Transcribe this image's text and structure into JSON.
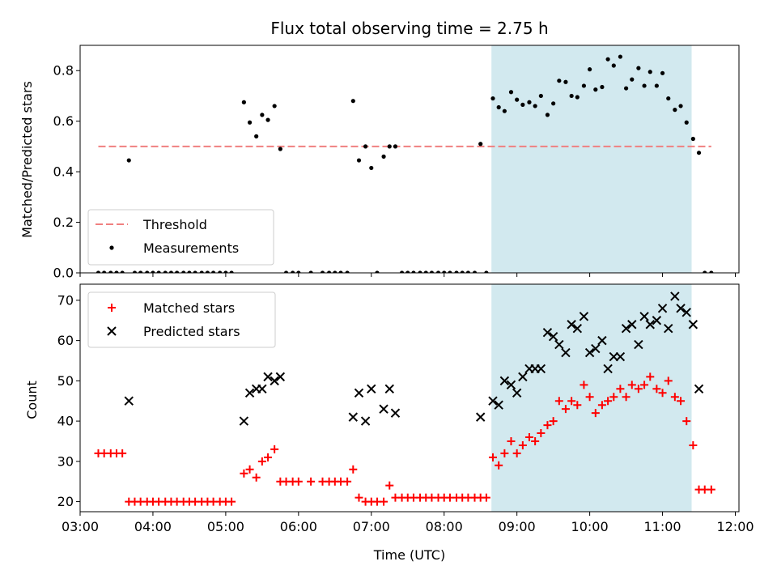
{
  "chart_data": [
    {
      "type": "scatter",
      "title": "Flux total observing time = 2.75 h",
      "xlabel": "",
      "ylabel": "Matched/Predicted stars",
      "xlim": [
        3.0,
        12.05
      ],
      "ylim": [
        0.0,
        0.9
      ],
      "yticks": [
        "0.0",
        "0.2",
        "0.4",
        "0.6",
        "0.8"
      ],
      "ytick_values": [
        0,
        0.2,
        0.4,
        0.6,
        0.8
      ],
      "grid": false,
      "legend_position": "lower-left",
      "shaded_interval": {
        "x": [
          8.65,
          11.4
        ],
        "color": "#d2e9ef"
      },
      "threshold": {
        "name": "Threshold",
        "value": 0.5,
        "x": [
          3.25,
          11.67
        ],
        "color": "#f08080"
      },
      "measurements": {
        "name": "Measurements",
        "color": "#000000",
        "x": [
          3.25,
          3.33,
          3.42,
          3.5,
          3.58,
          3.67,
          3.75,
          3.83,
          3.92,
          4.0,
          4.08,
          4.17,
          4.25,
          4.33,
          4.42,
          4.5,
          4.58,
          4.67,
          4.75,
          4.83,
          4.92,
          5.0,
          5.08,
          5.25,
          5.33,
          5.42,
          5.5,
          5.58,
          5.67,
          5.75,
          5.83,
          5.92,
          6.0,
          6.17,
          6.33,
          6.42,
          6.5,
          6.58,
          6.67,
          6.75,
          6.83,
          6.92,
          7.0,
          7.08,
          7.17,
          7.25,
          7.33,
          7.42,
          7.5,
          7.58,
          7.67,
          7.75,
          7.83,
          7.92,
          8.0,
          8.08,
          8.17,
          8.25,
          8.33,
          8.42,
          8.5,
          8.58,
          8.67,
          8.75,
          8.83,
          8.92,
          9.0,
          9.08,
          9.17,
          9.25,
          9.33,
          9.42,
          9.5,
          9.58,
          9.67,
          9.75,
          9.83,
          9.92,
          10.0,
          10.08,
          10.17,
          10.25,
          10.33,
          10.42,
          10.5,
          10.58,
          10.67,
          10.75,
          10.83,
          10.92,
          11.0,
          11.08,
          11.17,
          11.25,
          11.33,
          11.42,
          11.5,
          11.58,
          11.67
        ],
        "y": [
          0,
          0,
          0,
          0,
          0,
          0.445,
          0,
          0,
          0,
          0,
          0,
          0,
          0,
          0,
          0,
          0,
          0,
          0,
          0,
          0,
          0,
          0,
          0,
          0.675,
          0.595,
          0.54,
          0.625,
          0.605,
          0.66,
          0.49,
          0,
          0,
          0,
          0,
          0,
          0,
          0,
          0,
          0,
          0.68,
          0.445,
          0.5,
          0.415,
          0,
          0.46,
          0.5,
          0.5,
          0,
          0,
          0,
          0,
          0,
          0,
          0,
          0,
          0,
          0,
          0,
          0,
          0,
          0.51,
          0,
          0.69,
          0.655,
          0.64,
          0.715,
          0.685,
          0.665,
          0.675,
          0.66,
          0.7,
          0.625,
          0.67,
          0.76,
          0.755,
          0.7,
          0.695,
          0.74,
          0.805,
          0.725,
          0.735,
          0.845,
          0.82,
          0.855,
          0.73,
          0.765,
          0.81,
          0.74,
          0.795,
          0.74,
          0.79,
          0.69,
          0.645,
          0.66,
          0.595,
          0.53,
          0.475,
          0,
          0
        ]
      }
    },
    {
      "type": "scatter",
      "title": "",
      "xlabel": "Time (UTC)",
      "ylabel": "Count",
      "xlim": [
        3.0,
        12.05
      ],
      "ylim": [
        17.5,
        74
      ],
      "yticks": [
        "20",
        "30",
        "40",
        "50",
        "60",
        "70"
      ],
      "ytick_values": [
        20,
        30,
        40,
        50,
        60,
        70
      ],
      "xticks": [
        "03:00",
        "04:00",
        "05:00",
        "06:00",
        "07:00",
        "08:00",
        "09:00",
        "10:00",
        "11:00",
        "12:00"
      ],
      "xtick_values": [
        3,
        4,
        5,
        6,
        7,
        8,
        9,
        10,
        11,
        12
      ],
      "grid": false,
      "legend_position": "upper-left",
      "shaded_interval": {
        "x": [
          8.65,
          11.4
        ],
        "color": "#d2e9ef"
      },
      "series": [
        {
          "name": "Matched stars",
          "marker": "plus",
          "color": "#ff0000",
          "x": [
            3.25,
            3.33,
            3.42,
            3.5,
            3.58,
            3.67,
            3.75,
            3.83,
            3.92,
            4.0,
            4.08,
            4.17,
            4.25,
            4.33,
            4.42,
            4.5,
            4.58,
            4.67,
            4.75,
            4.83,
            4.92,
            5.0,
            5.08,
            5.25,
            5.33,
            5.42,
            5.5,
            5.58,
            5.67,
            5.75,
            5.83,
            5.92,
            6.0,
            6.17,
            6.33,
            6.42,
            6.5,
            6.58,
            6.67,
            6.75,
            6.83,
            6.92,
            7.0,
            7.08,
            7.17,
            7.25,
            7.33,
            7.42,
            7.5,
            7.58,
            7.67,
            7.75,
            7.83,
            7.92,
            8.0,
            8.08,
            8.17,
            8.25,
            8.33,
            8.42,
            8.5,
            8.58,
            8.67,
            8.75,
            8.83,
            8.92,
            9.0,
            9.08,
            9.17,
            9.25,
            9.33,
            9.42,
            9.5,
            9.58,
            9.67,
            9.75,
            9.83,
            9.92,
            10.0,
            10.08,
            10.17,
            10.25,
            10.33,
            10.42,
            10.5,
            10.58,
            10.67,
            10.75,
            10.83,
            10.92,
            11.0,
            11.08,
            11.17,
            11.25,
            11.33,
            11.42,
            11.5,
            11.58,
            11.67
          ],
          "y": [
            32,
            32,
            32,
            32,
            32,
            20,
            20,
            20,
            20,
            20,
            20,
            20,
            20,
            20,
            20,
            20,
            20,
            20,
            20,
            20,
            20,
            20,
            20,
            27,
            28,
            26,
            30,
            31,
            33,
            25,
            25,
            25,
            25,
            25,
            25,
            25,
            25,
            25,
            25,
            28,
            21,
            20,
            20,
            20,
            20,
            24,
            21,
            21,
            21,
            21,
            21,
            21,
            21,
            21,
            21,
            21,
            21,
            21,
            21,
            21,
            21,
            21,
            31,
            29,
            32,
            35,
            32,
            34,
            36,
            35,
            37,
            39,
            40,
            45,
            43,
            45,
            44,
            49,
            46,
            42,
            44,
            45,
            46,
            48,
            46,
            49,
            48,
            49,
            51,
            48,
            47,
            50,
            46,
            45,
            40,
            34,
            23,
            23,
            23
          ]
        },
        {
          "name": "Predicted stars",
          "marker": "x",
          "color": "#000000",
          "x": [
            3.67,
            5.25,
            5.33,
            5.42,
            5.5,
            5.58,
            5.67,
            5.75,
            6.75,
            6.83,
            6.92,
            7.0,
            7.17,
            7.25,
            7.33,
            8.5,
            8.67,
            8.75,
            8.83,
            8.92,
            9.0,
            9.08,
            9.17,
            9.25,
            9.33,
            9.42,
            9.5,
            9.58,
            9.67,
            9.75,
            9.83,
            9.92,
            10.0,
            10.08,
            10.17,
            10.25,
            10.33,
            10.42,
            10.5,
            10.58,
            10.67,
            10.75,
            10.83,
            10.92,
            11.0,
            11.08,
            11.17,
            11.25,
            11.33,
            11.42,
            11.5
          ],
          "y": [
            45,
            40,
            47,
            48,
            48,
            51,
            50,
            51,
            41,
            47,
            40,
            48,
            43,
            48,
            42,
            41,
            45,
            44,
            50,
            49,
            47,
            51,
            53,
            53,
            53,
            62,
            61,
            59,
            57,
            64,
            63,
            66,
            57,
            58,
            60,
            53,
            56,
            56,
            63,
            64,
            59,
            66,
            64,
            65,
            68,
            63,
            71,
            68,
            67,
            64,
            48
          ]
        }
      ]
    }
  ]
}
